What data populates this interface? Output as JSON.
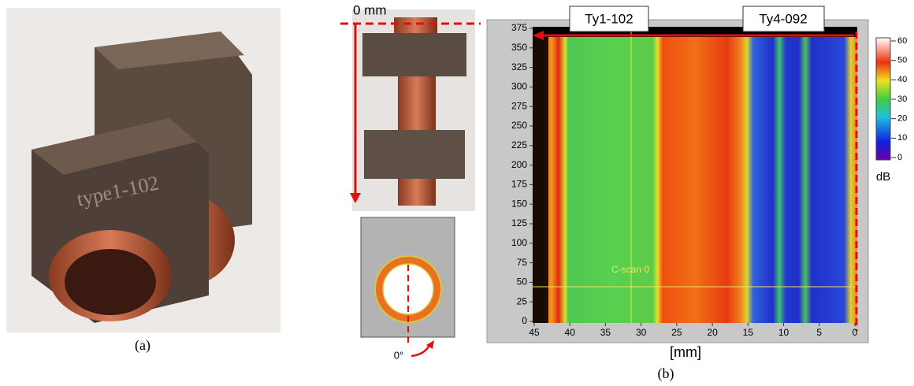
{
  "panel_a": {
    "engraving": "type1-102",
    "caption": "(a)"
  },
  "panel_b": {
    "caption": "(b)",
    "origin_label": "0 mm",
    "angle_label": "0°",
    "cscan": {
      "labels": [
        "Ty1-102",
        "Ty4-092"
      ],
      "overlay": "C-scan 0",
      "x_label": "[mm]",
      "xticks": [
        45,
        40,
        35,
        30,
        25,
        20,
        15,
        10,
        5,
        0
      ],
      "yticks": [
        0,
        25,
        50,
        75,
        100,
        125,
        150,
        175,
        200,
        225,
        250,
        275,
        300,
        325,
        350,
        375
      ],
      "colorbar": {
        "ticks": [
          0,
          10,
          20,
          30,
          40,
          50,
          60
        ],
        "unit": "dB"
      }
    }
  }
}
